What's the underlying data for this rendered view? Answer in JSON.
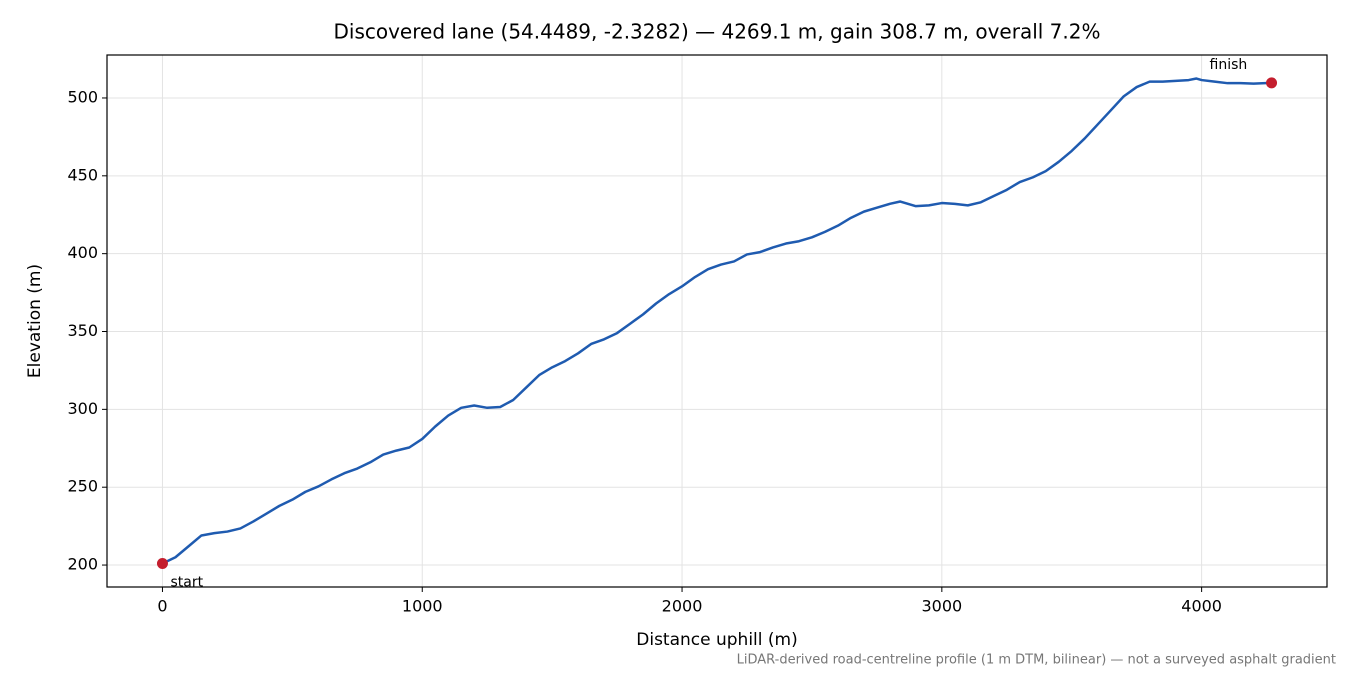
{
  "chart_data": {
    "type": "line",
    "title": "Discovered lane (54.4489, -2.3282) — 4269.1 m, gain 308.7 m, overall 7.2%",
    "x_label": "Distance uphill (m)",
    "y_label": "Elevation (m)",
    "note": "LiDAR-derived road-centreline profile (1 m DTM, bilinear) — not a surveyed asphalt gradient",
    "x": [
      0,
      50,
      100,
      150,
      200,
      250,
      300,
      350,
      400,
      450,
      500,
      550,
      600,
      650,
      700,
      750,
      800,
      850,
      900,
      950,
      1000,
      1050,
      1100,
      1150,
      1200,
      1250,
      1300,
      1350,
      1400,
      1450,
      1500,
      1550,
      1600,
      1650,
      1700,
      1750,
      1800,
      1850,
      1900,
      1950,
      2000,
      2050,
      2100,
      2150,
      2200,
      2250,
      2300,
      2350,
      2400,
      2450,
      2500,
      2550,
      2600,
      2650,
      2700,
      2750,
      2800,
      2840,
      2900,
      2950,
      3000,
      3050,
      3100,
      3150,
      3200,
      3250,
      3300,
      3350,
      3400,
      3450,
      3500,
      3550,
      3600,
      3650,
      3700,
      3750,
      3800,
      3850,
      3900,
      3950,
      3980,
      4000,
      4050,
      4100,
      4150,
      4200,
      4269.1
    ],
    "series": [
      {
        "color": "#1f5bb0",
        "values": [
          201,
          205,
          212,
          219,
          220.5,
          221.5,
          223.5,
          228,
          233,
          238,
          242,
          247,
          250.5,
          255,
          259,
          262,
          266,
          271,
          273.5,
          275.5,
          281,
          289,
          296,
          301,
          302.5,
          301,
          301.5,
          306,
          314,
          322,
          327,
          331,
          336,
          342,
          345,
          349,
          355,
          361,
          368,
          374,
          379,
          385,
          390,
          393,
          395,
          399.5,
          401,
          404,
          406.5,
          408,
          410.5,
          414,
          418,
          423,
          427,
          429.5,
          432,
          433.5,
          430.5,
          431,
          432.5,
          432,
          431,
          433,
          437,
          441,
          446,
          449,
          453,
          459,
          466,
          474,
          483,
          492,
          501,
          507,
          510.5,
          510.5,
          511,
          511.5,
          512.5,
          511.5,
          510.5,
          509.5,
          509.5,
          509.2,
          509.7
        ]
      }
    ],
    "annotations": [
      {
        "text": "start",
        "x": 0,
        "y": 201,
        "color": "#c41e2e"
      },
      {
        "text": "finish",
        "x": 4269.1,
        "y": 509.7,
        "color": "#c41e2e"
      }
    ],
    "xlim": [
      -213.5,
      4482.6
    ],
    "ylim": [
      185.9,
      527.6
    ],
    "xticks": [
      0,
      1000,
      2000,
      3000,
      4000
    ],
    "yticks": [
      200,
      250,
      300,
      350,
      400,
      450,
      500
    ],
    "grid": true
  }
}
